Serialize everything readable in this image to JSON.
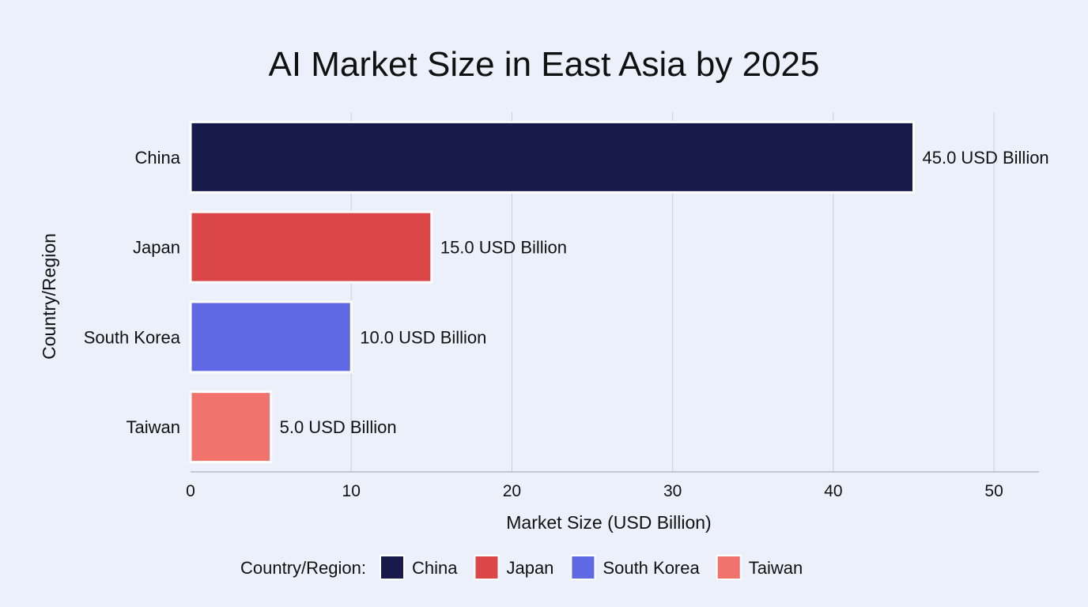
{
  "chart_data": {
    "type": "bar",
    "orientation": "horizontal",
    "title": "AI Market Size in East Asia by 2025",
    "xlabel": "Market Size (USD Billion)",
    "ylabel": "Country/Region",
    "categories": [
      "China",
      "Japan",
      "South Korea",
      "Taiwan"
    ],
    "values": [
      45.0,
      15.0,
      10.0,
      5.0
    ],
    "data_labels": [
      "45.0 USD Billion",
      "15.0 USD Billion",
      "10.0 USD Billion",
      "5.0 USD Billion"
    ],
    "colors": [
      "#171a4a",
      "#db4749",
      "#5f69e6",
      "#f2736c"
    ],
    "xlim": [
      0,
      52.8
    ],
    "xticks": [
      0,
      10,
      20,
      30,
      40,
      50
    ],
    "grid": true,
    "legend": {
      "title": "Country/Region:",
      "placement": "bottom",
      "entries": [
        "China",
        "Japan",
        "South Korea",
        "Taiwan"
      ]
    }
  }
}
